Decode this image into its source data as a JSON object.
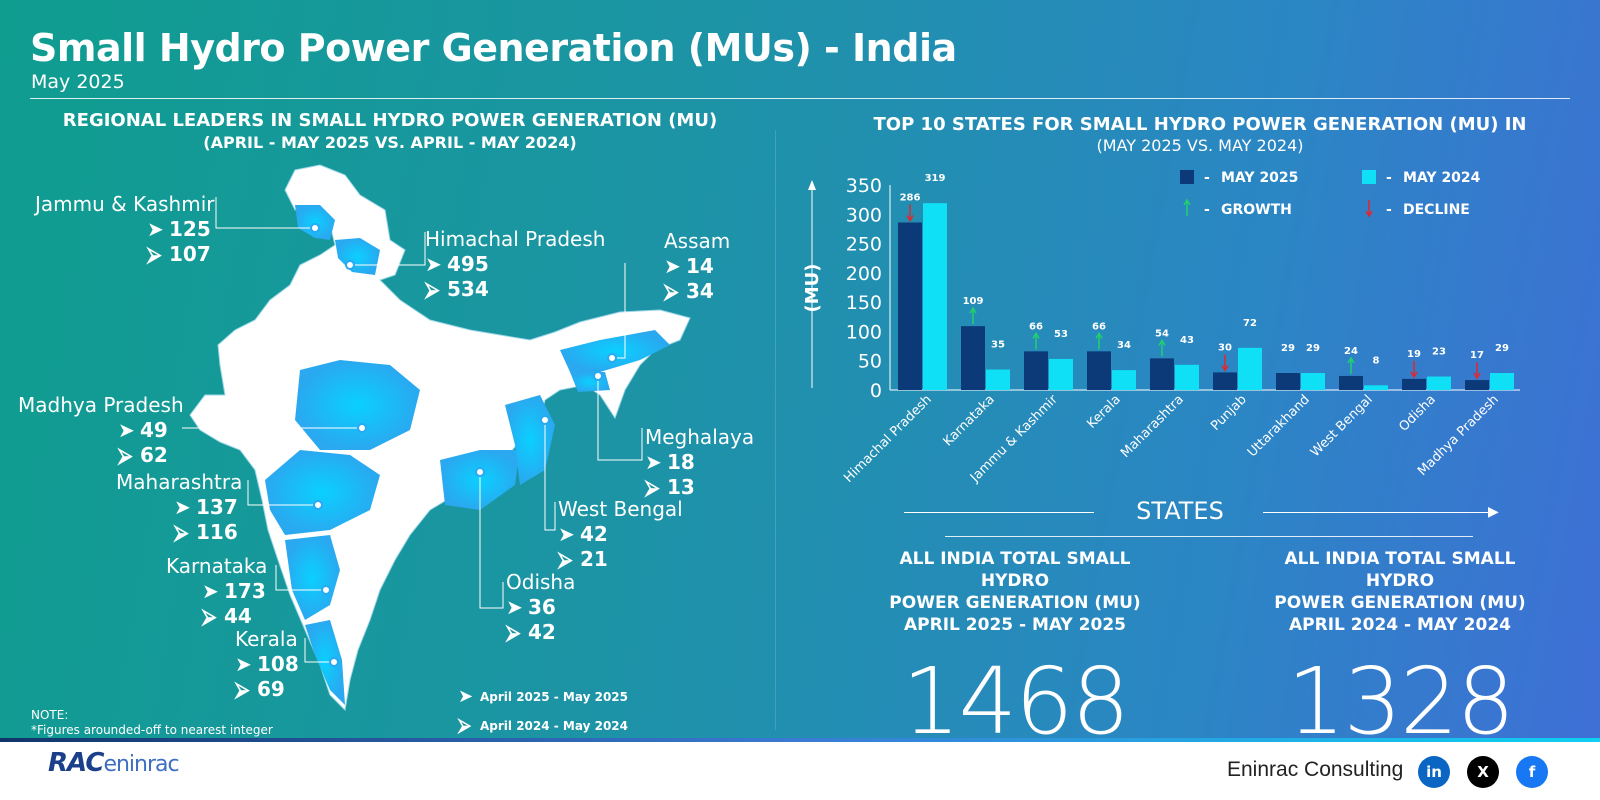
{
  "header": {
    "title": "Small Hydro Power Generation (MUs) - India",
    "subtitle": "May 2025"
  },
  "regional": {
    "title": "REGIONAL LEADERS IN SMALL HYDRO POWER GENERATION (MU)",
    "subtitle": "(APRIL - MAY 2025 VS. APRIL - MAY 2024)",
    "states": [
      {
        "name": "Jammu & Kashmir",
        "v2025": "125",
        "v2024": "107"
      },
      {
        "name": "Himachal Pradesh",
        "v2025": "495",
        "v2024": "534"
      },
      {
        "name": "Assam",
        "v2025": "14",
        "v2024": "34"
      },
      {
        "name": "Madhya Pradesh",
        "v2025": "49",
        "v2024": "62"
      },
      {
        "name": "Meghalaya",
        "v2025": "18",
        "v2024": "13"
      },
      {
        "name": "Maharashtra",
        "v2025": "137",
        "v2024": "116"
      },
      {
        "name": "West Bengal",
        "v2025": "42",
        "v2024": "21"
      },
      {
        "name": "Karnataka",
        "v2025": "173",
        "v2024": "44"
      },
      {
        "name": "Odisha",
        "v2025": "36",
        "v2024": "42"
      },
      {
        "name": "Kerala",
        "v2025": "108",
        "v2024": "69"
      }
    ],
    "legend": {
      "current": "April 2025 - May 2025",
      "previous": "April 2024 - May 2024"
    },
    "note_title": "NOTE:",
    "note_text": "*Figures arounded-off to nearest integer"
  },
  "top10": {
    "title": "TOP 10 STATES FOR SMALL HYDRO POWER GENERATION (MU) IN",
    "subtitle": "(MAY 2025 VS. MAY 2024)"
  },
  "chart_data": {
    "type": "bar",
    "categories": [
      "Himachal Pradesh",
      "Karnataka",
      "Jammu & Kashmir",
      "Kerala",
      "Maharashtra",
      "Punjab",
      "Uttarakhand",
      "West Bengal",
      "Odisha",
      "Madhya Pradesh"
    ],
    "series": [
      {
        "name": "MAY 2025",
        "values": [
          286,
          109,
          66,
          66,
          54,
          30,
          29,
          24,
          19,
          17
        ],
        "color": "#0c3a78"
      },
      {
        "name": "MAY 2024",
        "values": [
          319,
          35,
          53,
          34,
          43,
          72,
          29,
          8,
          23,
          29
        ],
        "color": "#0fe0f5"
      }
    ],
    "trend": [
      "decline",
      "growth",
      "growth",
      "growth",
      "growth",
      "decline",
      "none",
      "growth",
      "decline",
      "decline"
    ],
    "ylabel": "(MU)",
    "xlabel": "STATES",
    "ylim": [
      0,
      350
    ],
    "yticks": [
      0,
      50,
      100,
      150,
      200,
      250,
      300,
      350
    ],
    "legend": {
      "growth": "GROWTH",
      "decline": "DECLINE",
      "growth_color": "#21d16a",
      "decline_color": "#e3262c",
      "separator": "-"
    }
  },
  "totals": [
    {
      "title_lines": [
        "ALL INDIA TOTAL SMALL HYDRO",
        "POWER GENERATION (MU)",
        "APRIL 2025 - MAY 2025"
      ],
      "value": "1468"
    },
    {
      "title_lines": [
        "ALL INDIA TOTAL SMALL HYDRO",
        "POWER GENERATION (MU)",
        "APRIL 2024 - MAY 2024"
      ],
      "value": "1328"
    }
  ],
  "footer": {
    "brand": "RAC",
    "brand_sub": "eninrac",
    "company": "Eninrac Consulting",
    "social": [
      {
        "icon": "linkedin-icon",
        "label": "in",
        "color": "#0a66c2"
      },
      {
        "icon": "x-icon",
        "label": "X",
        "color": "#000000"
      },
      {
        "icon": "facebook-icon",
        "label": "f",
        "color": "#1877f2"
      }
    ]
  }
}
